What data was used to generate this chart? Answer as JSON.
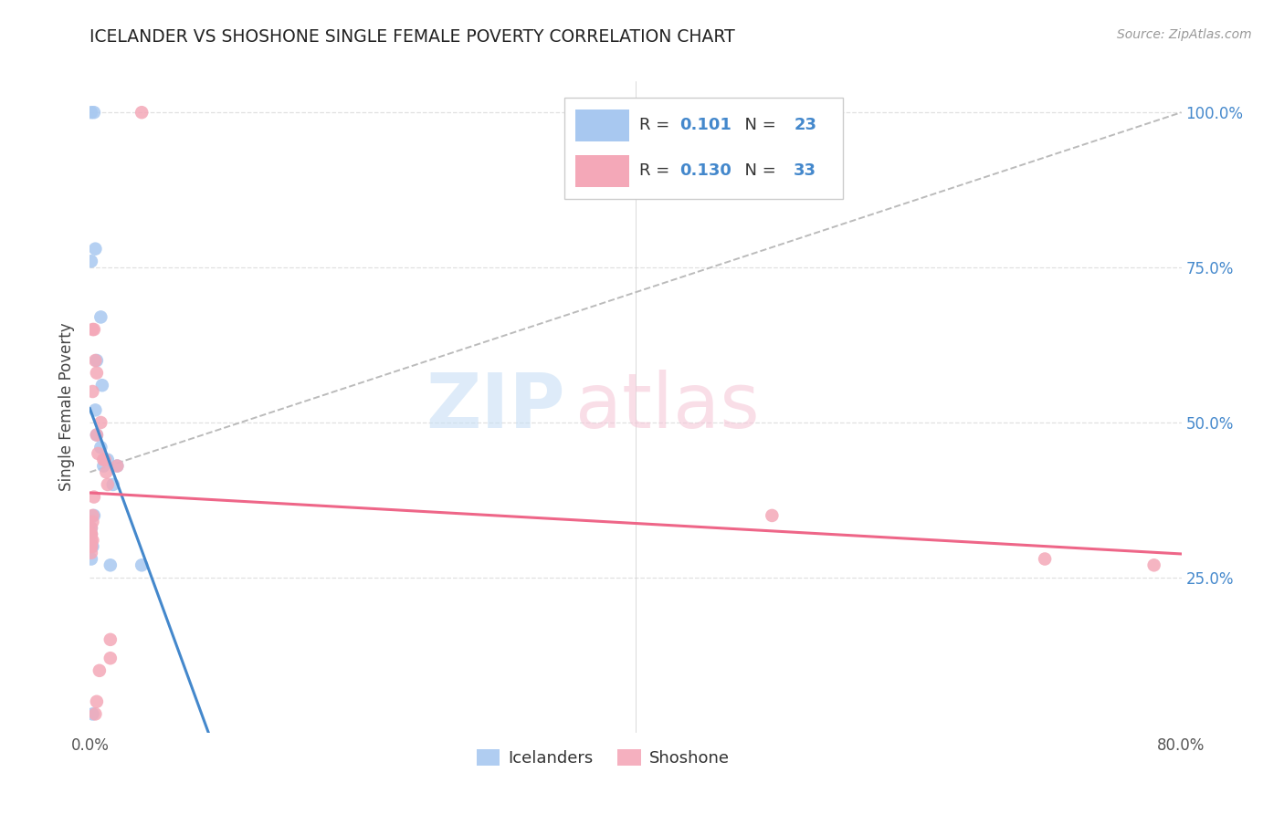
{
  "title": "ICELANDER VS SHOSHONE SINGLE FEMALE POVERTY CORRELATION CHART",
  "source": "Source: ZipAtlas.com",
  "ylabel": "Single Female Poverty",
  "icelander_R": "0.101",
  "icelander_N": "23",
  "shoshone_R": "0.130",
  "shoshone_N": "33",
  "icel_x": [
    0.001,
    0.003,
    0.004,
    0.001,
    0.008,
    0.005,
    0.009,
    0.004,
    0.005,
    0.008,
    0.013,
    0.01,
    0.02,
    0.017,
    0.003,
    0.001,
    0.001,
    0.001,
    0.002,
    0.001,
    0.015,
    0.038,
    0.002
  ],
  "icel_y": [
    1.0,
    1.0,
    0.78,
    0.76,
    0.67,
    0.6,
    0.56,
    0.52,
    0.48,
    0.46,
    0.44,
    0.43,
    0.43,
    0.4,
    0.35,
    0.33,
    0.32,
    0.3,
    0.3,
    0.28,
    0.27,
    0.27,
    0.03
  ],
  "shosh_x": [
    0.038,
    0.002,
    0.003,
    0.004,
    0.005,
    0.002,
    0.008,
    0.005,
    0.006,
    0.01,
    0.011,
    0.02,
    0.012,
    0.013,
    0.003,
    0.002,
    0.002,
    0.001,
    0.001,
    0.001,
    0.001,
    0.002,
    0.001,
    0.001,
    0.001,
    0.5,
    0.7,
    0.78,
    0.015,
    0.015,
    0.007,
    0.005,
    0.004
  ],
  "shosh_y": [
    1.0,
    0.65,
    0.65,
    0.6,
    0.58,
    0.55,
    0.5,
    0.48,
    0.45,
    0.44,
    0.44,
    0.43,
    0.42,
    0.4,
    0.38,
    0.35,
    0.34,
    0.33,
    0.32,
    0.32,
    0.31,
    0.31,
    0.3,
    0.3,
    0.29,
    0.35,
    0.28,
    0.27,
    0.15,
    0.12,
    0.1,
    0.05,
    0.03
  ],
  "xlim": [
    0.0,
    0.8
  ],
  "ylim": [
    0.0,
    1.05
  ],
  "icelander_dot_color": "#a8c8f0",
  "shoshone_dot_color": "#f4a8b8",
  "icelander_line_color": "#4488cc",
  "shoshone_line_color": "#ee6688",
  "ref_line_color": "#bbbbbb",
  "right_tick_color": "#4488cc",
  "grid_color": "#e0e0e0",
  "bg_color": "#ffffff",
  "text_color": "#333333",
  "legend_R_color": "#333333",
  "legend_N_color": "#4488cc"
}
